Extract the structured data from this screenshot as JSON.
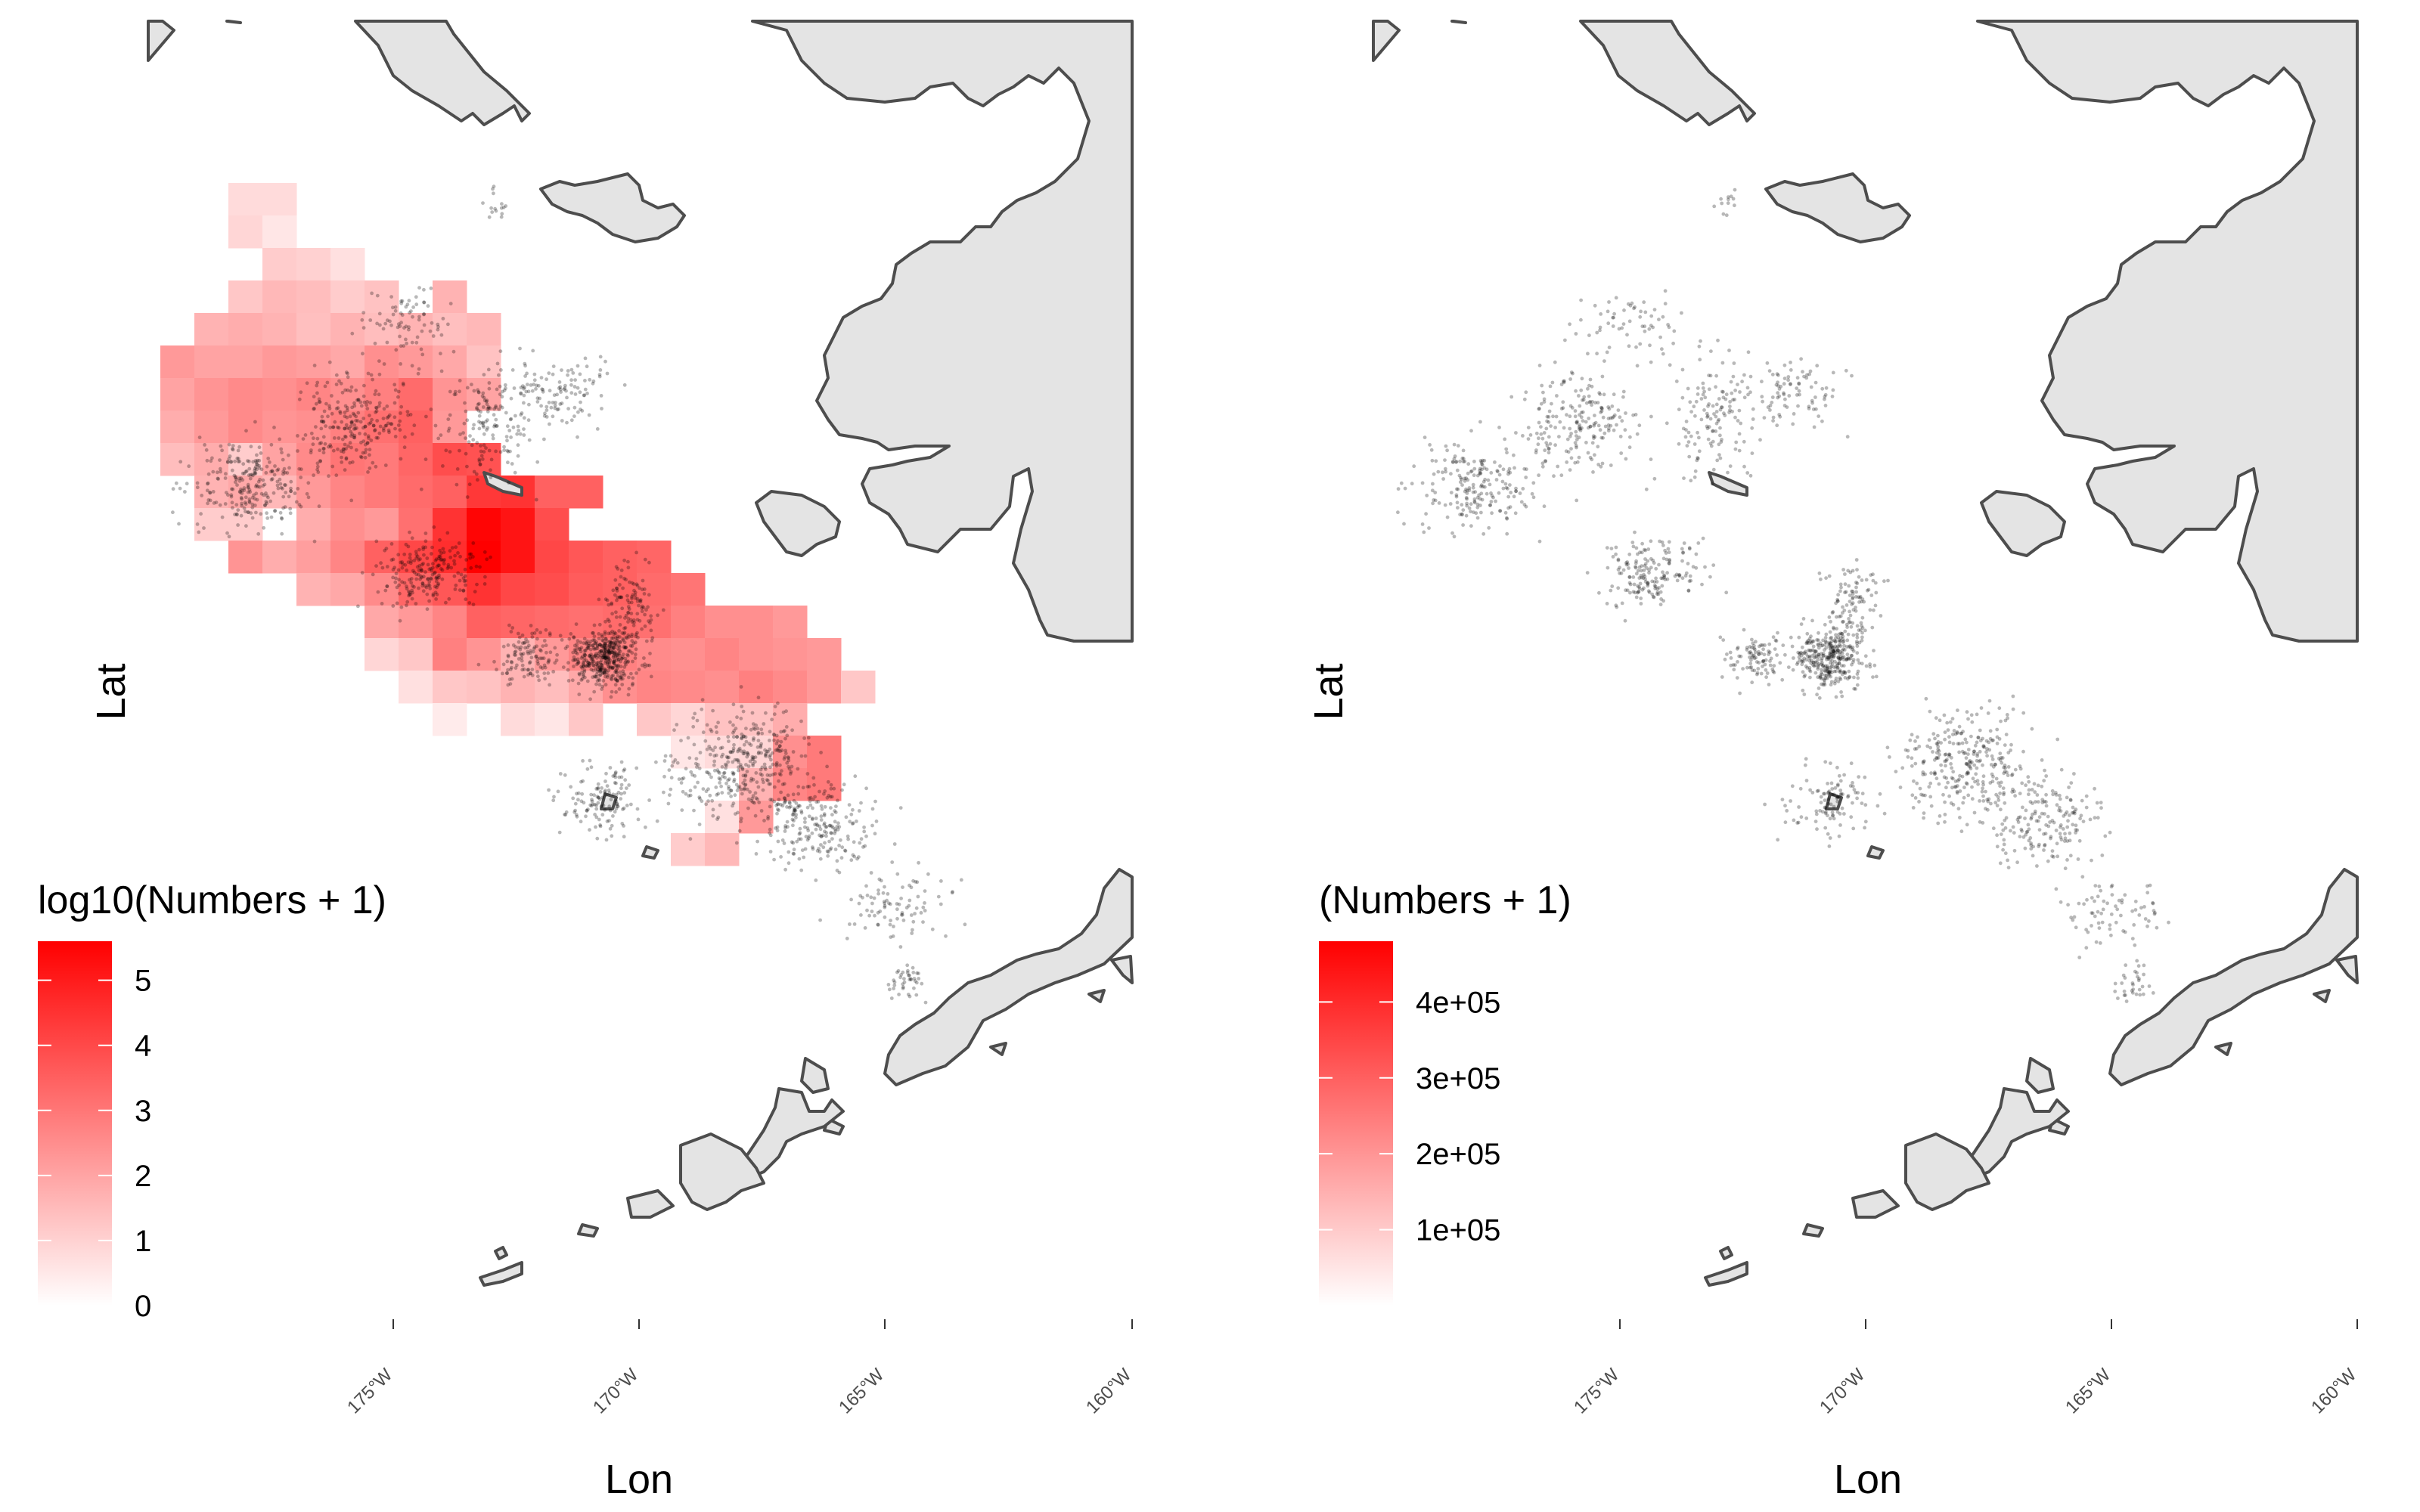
{
  "map": {
    "region": "Eastern Bering Sea",
    "land_fill": "#e4e4e4",
    "coast_stroke": "#4d4d4d",
    "point_color": "#000000"
  },
  "chart_data": [
    {
      "type": "heatmap",
      "panel": "left",
      "xlabel": "Lon",
      "ylabel": "Lat",
      "x_ticks": [
        "175°W",
        "170°W",
        "165°W",
        "160°W"
      ],
      "x_tick_values": [
        -175,
        -170,
        -165,
        -160
      ],
      "legend": {
        "title": "log10(Numbers + 1)",
        "ticks": [
          "0",
          "1",
          "2",
          "3",
          "4",
          "5"
        ],
        "tick_values": [
          0,
          1,
          2,
          3,
          4,
          5
        ],
        "range": [
          0,
          5.6
        ],
        "low_color": "#ffffff",
        "high_color": "#ff0000"
      },
      "fill_profile": "log"
    },
    {
      "type": "heatmap",
      "panel": "right",
      "xlabel": "Lon",
      "ylabel": "Lat",
      "x_ticks": [
        "175°W",
        "170°W",
        "165°W",
        "160°W"
      ],
      "x_tick_values": [
        -175,
        -170,
        -165,
        -160
      ],
      "legend": {
        "title": "(Numbers + 1)",
        "ticks": [
          "1e+05",
          "2e+05",
          "3e+05",
          "4e+05"
        ],
        "tick_values": [
          100000,
          200000,
          300000,
          400000
        ],
        "range": [
          0,
          480000
        ],
        "low_color": "#ffffff",
        "high_color": "#ff0000"
      },
      "fill_profile": "linear"
    }
  ]
}
